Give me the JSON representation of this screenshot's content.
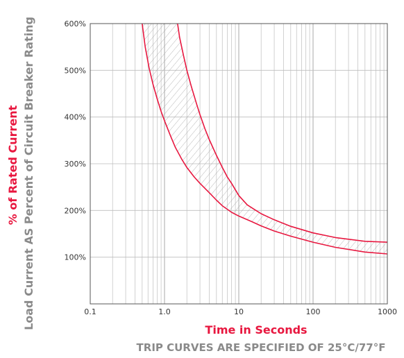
{
  "chart_data": {
    "type": "line",
    "x_scale": "log",
    "xlim": [
      0.1,
      1000
    ],
    "ylim": [
      0,
      600
    ],
    "x_ticks": [
      0.1,
      1,
      10,
      100,
      1000
    ],
    "x_tick_labels": [
      "0.1",
      "1.0",
      "10",
      "100",
      "1000"
    ],
    "y_ticks": [
      100,
      200,
      300,
      400,
      500,
      600
    ],
    "y_tick_labels": [
      "100%",
      "200%",
      "300%",
      "400%",
      "500%",
      "600%"
    ],
    "grid": true,
    "xlabel": "Time in Seconds",
    "ylabel_line1": "% of Rated Current",
    "ylabel_line2": "Load Current AS Percent of Circuit Breaker Rating",
    "note": "TRIP CURVES ARE SPECIFIED OF 25°C/77°F",
    "colors": {
      "curve": "#e8173f",
      "label_red": "#e8173f",
      "label_gray": "#8a8a8a",
      "hatch": "#9a9a9a"
    },
    "series": [
      {
        "x": [
          0.5,
          0.55,
          0.62,
          0.7,
          0.8,
          0.9,
          1.0,
          1.2,
          1.4,
          1.7,
          2.0,
          2.5,
          3.0,
          4.0,
          5.0,
          6.0,
          8.0,
          10,
          15,
          20,
          30,
          50,
          100,
          200,
          500,
          1000
        ],
        "y": [
          600,
          550,
          505,
          470,
          438,
          412,
          392,
          360,
          335,
          310,
          292,
          272,
          258,
          238,
          222,
          210,
          196,
          188,
          176,
          167,
          156,
          145,
          132,
          121,
          111,
          107
        ]
      },
      {
        "x": [
          1.5,
          1.6,
          1.8,
          2.0,
          2.3,
          2.7,
          3.0,
          3.5,
          4.0,
          5.0,
          6.0,
          7.0,
          8.0,
          10,
          13,
          17,
          20,
          30,
          50,
          100,
          200,
          500,
          1000
        ],
        "y": [
          600,
          570,
          532,
          500,
          465,
          428,
          405,
          375,
          352,
          318,
          292,
          272,
          258,
          232,
          212,
          200,
          193,
          180,
          166,
          152,
          142,
          134,
          132
        ]
      }
    ]
  }
}
